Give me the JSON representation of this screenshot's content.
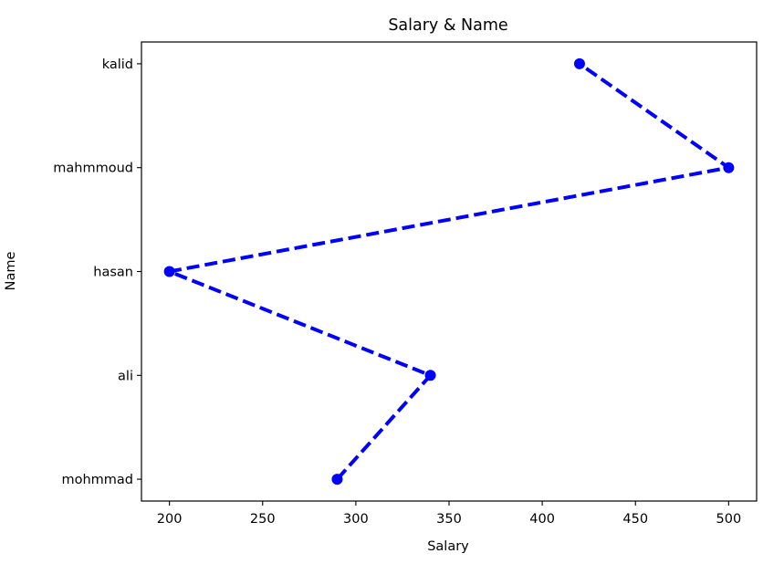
{
  "chart_data": {
    "type": "line",
    "title": "Salary & Name",
    "xlabel": "Salary",
    "ylabel": "Name",
    "xlim": [
      185,
      515
    ],
    "xticks": [
      200,
      250,
      300,
      350,
      400,
      450,
      500
    ],
    "categories": [
      "mohmmad",
      "ali",
      "hasan",
      "mahmmoud",
      "kalid"
    ],
    "series": [
      {
        "color": "#0000ff",
        "line_style": "dashed",
        "marker": "circle",
        "points": [
          {
            "name": "mohmmad",
            "salary": 290
          },
          {
            "name": "ali",
            "salary": 340
          },
          {
            "name": "hasan",
            "salary": 200
          },
          {
            "name": "mahmmoud",
            "salary": 500
          },
          {
            "name": "kalid",
            "salary": 420
          }
        ]
      }
    ],
    "grid": false,
    "legend": "none"
  }
}
